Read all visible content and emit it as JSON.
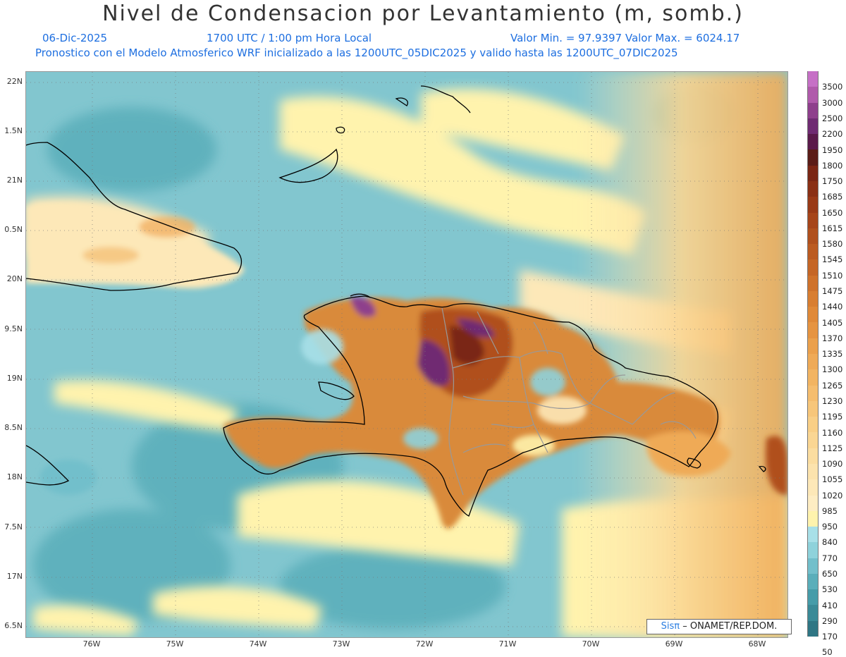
{
  "header": {
    "title": "Nivel de Condensacion por Levantamiento (m, somb.)",
    "date": "06-Dic-2025",
    "time": "1700 UTC / 1:00 pm Hora Local",
    "minmax": "Valor Min. = 97.9397  Valor Max. = 6024.17",
    "forecast": "Pronostico con el Modelo Atmosferico WRF inicializado a las 1200UTC_05DIC2025 y valido hasta las  1200UTC_07DIC2025"
  },
  "axes": {
    "lat_labels": [
      "22N",
      "1.5N",
      "21N",
      "0.5N",
      "20N",
      "9.5N",
      "19N",
      "8.5N",
      "18N",
      "7.5N",
      "17N",
      "6.5N"
    ],
    "lon_labels": [
      "76W",
      "75W",
      "74W",
      "73W",
      "72W",
      "71W",
      "70W",
      "69W",
      "68W"
    ]
  },
  "colorbar": {
    "labels": [
      "3500",
      "3000",
      "2500",
      "2200",
      "1950",
      "1800",
      "1750",
      "1685",
      "1650",
      "1615",
      "1580",
      "1545",
      "1510",
      "1475",
      "1440",
      "1405",
      "1370",
      "1335",
      "1300",
      "1265",
      "1230",
      "1195",
      "1160",
      "1125",
      "1090",
      "1055",
      "1020",
      "985",
      "950",
      "840",
      "770",
      "650",
      "530",
      "410",
      "290",
      "170",
      "50"
    ],
    "colors": [
      "#c670c6",
      "#b05aab",
      "#8e3f8c",
      "#6f2b72",
      "#5a1a4a",
      "#5a1c17",
      "#7a2614",
      "#8a3015",
      "#993a17",
      "#a6451a",
      "#b0501d",
      "#bb5b21",
      "#c56626",
      "#cf722b",
      "#d87e31",
      "#e08938",
      "#e69441",
      "#eba04c",
      "#efaa57",
      "#f2b462",
      "#f5bd6e",
      "#f7c67a",
      "#f9cf86",
      "#fad693",
      "#fbdda0",
      "#fce3ad",
      "#fde8b8",
      "#feedc3",
      "#fff3ad",
      "#a8e0e8",
      "#8ed2db",
      "#72bfcb",
      "#5aaeba",
      "#469ca9",
      "#3a8a97",
      "#2f7684"
    ],
    "ocean_color": "#82c6cf",
    "land_color": "#c8772e"
  },
  "credit": {
    "brand": "Sisπ",
    "text": "– ONAMET/REP.DOM."
  }
}
